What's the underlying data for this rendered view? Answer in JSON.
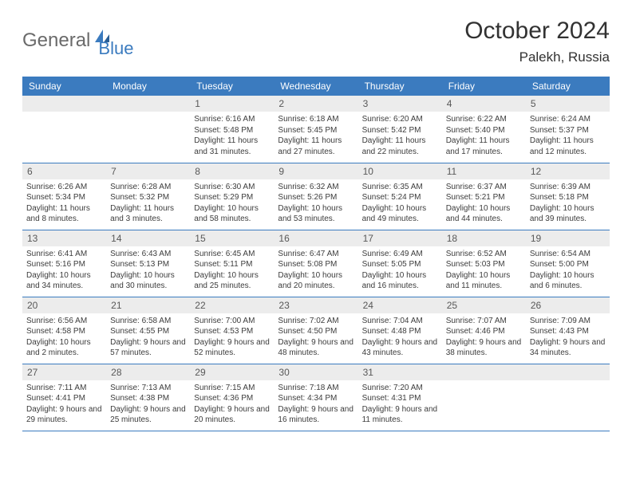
{
  "logo": {
    "part1": "General",
    "part2": "Blue"
  },
  "title": "October 2024",
  "location": "Palekh, Russia",
  "weekdays": [
    "Sunday",
    "Monday",
    "Tuesday",
    "Wednesday",
    "Thursday",
    "Friday",
    "Saturday"
  ],
  "colors": {
    "header_bg": "#3b7bbf",
    "daynum_bg": "#ececec",
    "border": "#3b7bbf",
    "logo_gray": "#6a6a6a",
    "logo_blue": "#3b7bbf"
  },
  "grid": [
    [
      null,
      null,
      {
        "n": "1",
        "sr": "6:16 AM",
        "ss": "5:48 PM",
        "dl": "11 hours and 31 minutes."
      },
      {
        "n": "2",
        "sr": "6:18 AM",
        "ss": "5:45 PM",
        "dl": "11 hours and 27 minutes."
      },
      {
        "n": "3",
        "sr": "6:20 AM",
        "ss": "5:42 PM",
        "dl": "11 hours and 22 minutes."
      },
      {
        "n": "4",
        "sr": "6:22 AM",
        "ss": "5:40 PM",
        "dl": "11 hours and 17 minutes."
      },
      {
        "n": "5",
        "sr": "6:24 AM",
        "ss": "5:37 PM",
        "dl": "11 hours and 12 minutes."
      }
    ],
    [
      {
        "n": "6",
        "sr": "6:26 AM",
        "ss": "5:34 PM",
        "dl": "11 hours and 8 minutes."
      },
      {
        "n": "7",
        "sr": "6:28 AM",
        "ss": "5:32 PM",
        "dl": "11 hours and 3 minutes."
      },
      {
        "n": "8",
        "sr": "6:30 AM",
        "ss": "5:29 PM",
        "dl": "10 hours and 58 minutes."
      },
      {
        "n": "9",
        "sr": "6:32 AM",
        "ss": "5:26 PM",
        "dl": "10 hours and 53 minutes."
      },
      {
        "n": "10",
        "sr": "6:35 AM",
        "ss": "5:24 PM",
        "dl": "10 hours and 49 minutes."
      },
      {
        "n": "11",
        "sr": "6:37 AM",
        "ss": "5:21 PM",
        "dl": "10 hours and 44 minutes."
      },
      {
        "n": "12",
        "sr": "6:39 AM",
        "ss": "5:18 PM",
        "dl": "10 hours and 39 minutes."
      }
    ],
    [
      {
        "n": "13",
        "sr": "6:41 AM",
        "ss": "5:16 PM",
        "dl": "10 hours and 34 minutes."
      },
      {
        "n": "14",
        "sr": "6:43 AM",
        "ss": "5:13 PM",
        "dl": "10 hours and 30 minutes."
      },
      {
        "n": "15",
        "sr": "6:45 AM",
        "ss": "5:11 PM",
        "dl": "10 hours and 25 minutes."
      },
      {
        "n": "16",
        "sr": "6:47 AM",
        "ss": "5:08 PM",
        "dl": "10 hours and 20 minutes."
      },
      {
        "n": "17",
        "sr": "6:49 AM",
        "ss": "5:05 PM",
        "dl": "10 hours and 16 minutes."
      },
      {
        "n": "18",
        "sr": "6:52 AM",
        "ss": "5:03 PM",
        "dl": "10 hours and 11 minutes."
      },
      {
        "n": "19",
        "sr": "6:54 AM",
        "ss": "5:00 PM",
        "dl": "10 hours and 6 minutes."
      }
    ],
    [
      {
        "n": "20",
        "sr": "6:56 AM",
        "ss": "4:58 PM",
        "dl": "10 hours and 2 minutes."
      },
      {
        "n": "21",
        "sr": "6:58 AM",
        "ss": "4:55 PM",
        "dl": "9 hours and 57 minutes."
      },
      {
        "n": "22",
        "sr": "7:00 AM",
        "ss": "4:53 PM",
        "dl": "9 hours and 52 minutes."
      },
      {
        "n": "23",
        "sr": "7:02 AM",
        "ss": "4:50 PM",
        "dl": "9 hours and 48 minutes."
      },
      {
        "n": "24",
        "sr": "7:04 AM",
        "ss": "4:48 PM",
        "dl": "9 hours and 43 minutes."
      },
      {
        "n": "25",
        "sr": "7:07 AM",
        "ss": "4:46 PM",
        "dl": "9 hours and 38 minutes."
      },
      {
        "n": "26",
        "sr": "7:09 AM",
        "ss": "4:43 PM",
        "dl": "9 hours and 34 minutes."
      }
    ],
    [
      {
        "n": "27",
        "sr": "7:11 AM",
        "ss": "4:41 PM",
        "dl": "9 hours and 29 minutes."
      },
      {
        "n": "28",
        "sr": "7:13 AM",
        "ss": "4:38 PM",
        "dl": "9 hours and 25 minutes."
      },
      {
        "n": "29",
        "sr": "7:15 AM",
        "ss": "4:36 PM",
        "dl": "9 hours and 20 minutes."
      },
      {
        "n": "30",
        "sr": "7:18 AM",
        "ss": "4:34 PM",
        "dl": "9 hours and 16 minutes."
      },
      {
        "n": "31",
        "sr": "7:20 AM",
        "ss": "4:31 PM",
        "dl": "9 hours and 11 minutes."
      },
      null,
      null
    ]
  ],
  "labels": {
    "sunrise": "Sunrise: ",
    "sunset": "Sunset: ",
    "daylight": "Daylight: "
  }
}
